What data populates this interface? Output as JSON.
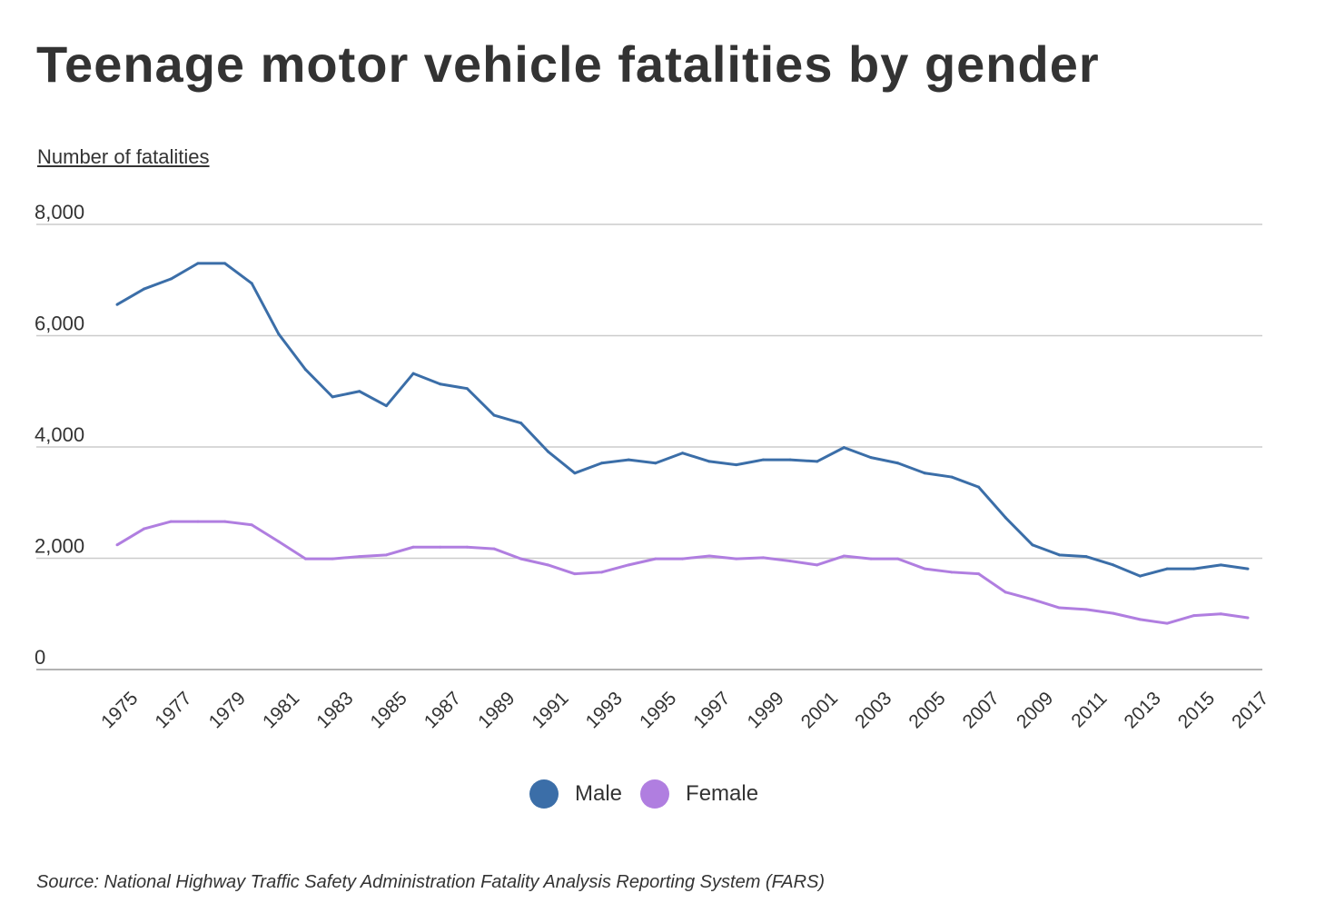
{
  "title": "Teenage motor vehicle fatalities by gender",
  "source": "Source: National Highway Traffic Safety Administration Fatality Analysis Reporting System (FARS)",
  "chart_data": {
    "type": "line",
    "title": "Teenage motor vehicle fatalities by gender",
    "ylabel": "Number of fatalities",
    "xlabel": "",
    "ylim": [
      0,
      8000
    ],
    "yticks": [
      0,
      2000,
      4000,
      6000,
      8000
    ],
    "ytick_labels": [
      "0",
      "2,000",
      "4,000",
      "6,000",
      "8,000"
    ],
    "x": [
      1975,
      1976,
      1977,
      1978,
      1979,
      1980,
      1981,
      1982,
      1983,
      1984,
      1985,
      1986,
      1987,
      1988,
      1989,
      1990,
      1991,
      1992,
      1993,
      1994,
      1995,
      1996,
      1997,
      1998,
      1999,
      2000,
      2001,
      2002,
      2003,
      2004,
      2005,
      2006,
      2007,
      2008,
      2009,
      2010,
      2011,
      2012,
      2013,
      2014,
      2015,
      2016,
      2017
    ],
    "xtick_labels": [
      "1975",
      "1977",
      "1979",
      "1981",
      "1983",
      "1985",
      "1987",
      "1989",
      "1991",
      "1993",
      "1995",
      "1997",
      "1999",
      "2001",
      "2003",
      "2005",
      "2007",
      "2009",
      "2011",
      "2013",
      "2015",
      "2017"
    ],
    "grid": true,
    "legend_placement": "bottom-center",
    "series": [
      {
        "name": "Male",
        "color": "#3b6ea8",
        "values": [
          6560,
          6840,
          7020,
          7300,
          7300,
          6940,
          6030,
          5390,
          4900,
          5000,
          4740,
          5320,
          5130,
          5050,
          4570,
          4430,
          3920,
          3530,
          3710,
          3770,
          3710,
          3890,
          3740,
          3680,
          3770,
          3770,
          3740,
          3990,
          3810,
          3710,
          3530,
          3460,
          3280,
          2730,
          2240,
          2060,
          2030,
          1880,
          1680,
          1810,
          1810,
          1880,
          1810
        ]
      },
      {
        "name": "Female",
        "color": "#b07ee0",
        "values": [
          2240,
          2530,
          2660,
          2660,
          2660,
          2600,
          2300,
          1990,
          1990,
          2030,
          2060,
          2200,
          2200,
          2200,
          2170,
          1990,
          1880,
          1720,
          1750,
          1880,
          1990,
          1990,
          2040,
          1990,
          2010,
          1950,
          1880,
          2040,
          1990,
          1990,
          1810,
          1750,
          1720,
          1390,
          1260,
          1110,
          1080,
          1010,
          900,
          830,
          970,
          1000,
          930
        ]
      }
    ]
  }
}
